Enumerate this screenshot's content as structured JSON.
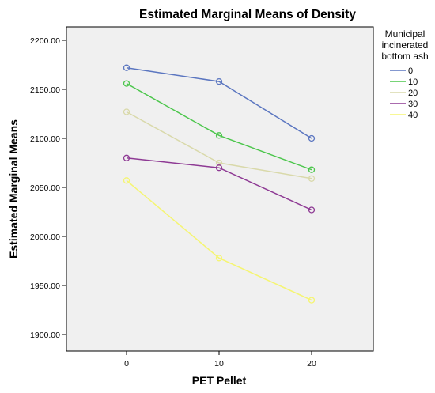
{
  "chart_data": {
    "type": "line",
    "title": "Estimated Marginal Means of Density",
    "xlabel": "PET Pellet",
    "ylabel": "Estimated Marginal Means",
    "x": [
      0,
      10,
      20
    ],
    "x_tick_labels": [
      "0",
      "10",
      "20"
    ],
    "ylim": [
      1880,
      2220
    ],
    "y_ticks": [
      1900,
      1950,
      2000,
      2050,
      2100,
      2150,
      2200
    ],
    "y_tick_labels": [
      "1900.00",
      "1950.00",
      "2000.00",
      "2050.00",
      "2100.00",
      "2150.00",
      "2200.00"
    ],
    "grid": false,
    "background": "#f0f0f0",
    "legend": {
      "title_lines": [
        "Municipal",
        "incinerated",
        "bottom ash"
      ],
      "placement": "right"
    },
    "series": [
      {
        "name": "0",
        "values": [
          2172,
          2158,
          2100
        ],
        "color": "#5b76c0"
      },
      {
        "name": "10",
        "values": [
          2156,
          2103,
          2068
        ],
        "color": "#4cc64c"
      },
      {
        "name": "20",
        "values": [
          2127,
          2075,
          2059
        ],
        "color": "#d9d9aa"
      },
      {
        "name": "30",
        "values": [
          2080,
          2070,
          2027
        ],
        "color": "#8e3a94"
      },
      {
        "name": "40",
        "values": [
          2057,
          1978,
          1935
        ],
        "color": "#f5f572"
      }
    ]
  }
}
